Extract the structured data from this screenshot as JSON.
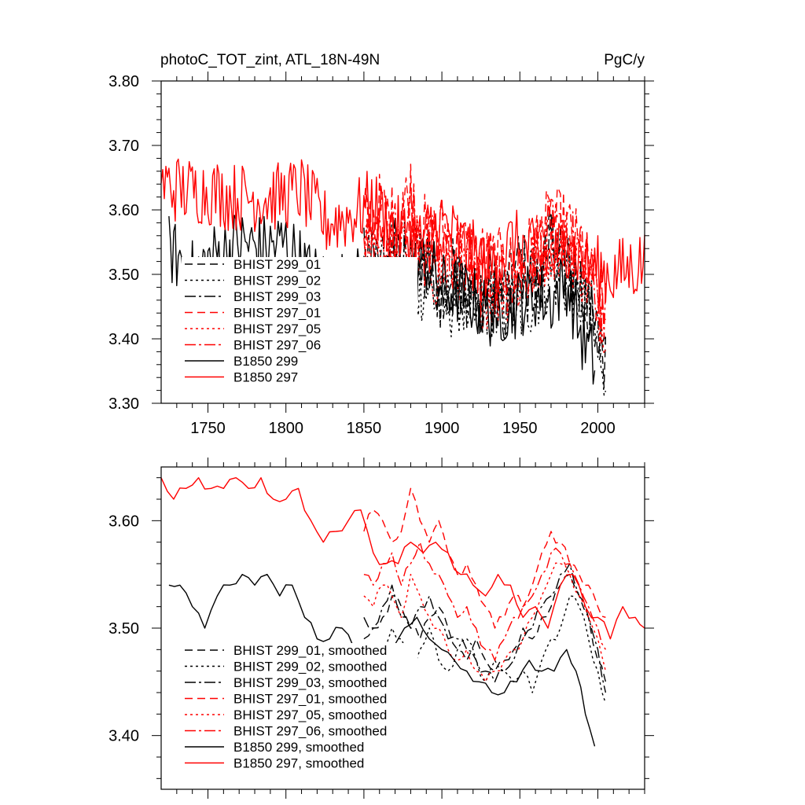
{
  "chart_data": [
    {
      "type": "line",
      "title": "photoC_TOT_zint, ATL_18N-49N",
      "units": "PgC/y",
      "xlim": [
        1720,
        2030
      ],
      "ylim": [
        3.3,
        3.8
      ],
      "xticks": [
        1750,
        1800,
        1850,
        1900,
        1950,
        2000
      ],
      "yticks": [
        "3.30",
        "3.40",
        "3.50",
        "3.60",
        "3.70",
        "3.80"
      ],
      "legend_position": "lower-left",
      "series": [
        {
          "name": "BHIST 299_01",
          "color": "#000000",
          "dash": "10,6",
          "start": 1850,
          "end": 2005,
          "x": [
            1850,
            1860,
            1870,
            1880,
            1890,
            1900,
            1910,
            1920,
            1930,
            1940,
            1950,
            1960,
            1970,
            1980,
            1990,
            2005
          ],
          "y": [
            3.51,
            3.48,
            3.55,
            3.47,
            3.53,
            3.46,
            3.52,
            3.45,
            3.49,
            3.47,
            3.52,
            3.48,
            3.55,
            3.51,
            3.47,
            3.36
          ]
        },
        {
          "name": "BHIST 299_02",
          "color": "#000000",
          "dash": "3,4",
          "start": 1850,
          "end": 2005,
          "x": [
            1850,
            1860,
            1870,
            1880,
            1890,
            1900,
            1910,
            1920,
            1930,
            1940,
            1950,
            1960,
            1970,
            1980,
            1990,
            2005
          ],
          "y": [
            3.52,
            3.45,
            3.5,
            3.47,
            3.49,
            3.44,
            3.47,
            3.43,
            3.46,
            3.45,
            3.44,
            3.47,
            3.5,
            3.49,
            3.46,
            3.36
          ]
        },
        {
          "name": "BHIST 299_03",
          "color": "#000000",
          "dash": "14,4,3,4",
          "start": 1850,
          "end": 2005,
          "x": [
            1850,
            1860,
            1870,
            1880,
            1890,
            1900,
            1910,
            1920,
            1930,
            1940,
            1950,
            1960,
            1970,
            1980,
            1990,
            2005
          ],
          "y": [
            3.53,
            3.49,
            3.54,
            3.51,
            3.52,
            3.48,
            3.5,
            3.46,
            3.47,
            3.45,
            3.47,
            3.5,
            3.54,
            3.51,
            3.48,
            3.37
          ]
        },
        {
          "name": "BHIST 297_01",
          "color": "#ff0000",
          "dash": "10,6",
          "start": 1850,
          "end": 2005,
          "x": [
            1850,
            1860,
            1870,
            1880,
            1890,
            1900,
            1910,
            1920,
            1930,
            1940,
            1950,
            1960,
            1970,
            1980,
            1990,
            2005
          ],
          "y": [
            3.58,
            3.6,
            3.58,
            3.63,
            3.56,
            3.57,
            3.55,
            3.53,
            3.52,
            3.51,
            3.51,
            3.55,
            3.58,
            3.57,
            3.53,
            3.43
          ]
        },
        {
          "name": "BHIST 297_05",
          "color": "#ff0000",
          "dash": "3,4",
          "start": 1850,
          "end": 2005,
          "x": [
            1850,
            1860,
            1870,
            1880,
            1890,
            1900,
            1910,
            1920,
            1930,
            1940,
            1950,
            1960,
            1970,
            1980,
            1990,
            2005
          ],
          "y": [
            3.54,
            3.53,
            3.52,
            3.56,
            3.51,
            3.5,
            3.52,
            3.48,
            3.47,
            3.48,
            3.49,
            3.52,
            3.55,
            3.55,
            3.51,
            3.43
          ]
        },
        {
          "name": "BHIST 297_06",
          "color": "#ff0000",
          "dash": "14,4,3,4",
          "start": 1850,
          "end": 2005,
          "x": [
            1850,
            1860,
            1870,
            1880,
            1890,
            1900,
            1910,
            1920,
            1930,
            1940,
            1950,
            1960,
            1970,
            1980,
            1990,
            2005
          ],
          "y": [
            3.56,
            3.55,
            3.56,
            3.6,
            3.53,
            3.54,
            3.53,
            3.5,
            3.49,
            3.5,
            3.5,
            3.53,
            3.56,
            3.56,
            3.52,
            3.43
          ]
        },
        {
          "name": "B1850 299",
          "color": "#000000",
          "dash": "",
          "start": 1725,
          "end": 1998,
          "x": [
            1725,
            1740,
            1755,
            1770,
            1785,
            1800,
            1815,
            1830,
            1845,
            1860,
            1875,
            1890,
            1900,
            1915,
            1930,
            1945,
            1960,
            1970,
            1980,
            1990,
            1998
          ],
          "y": [
            3.54,
            3.5,
            3.53,
            3.55,
            3.54,
            3.55,
            3.5,
            3.48,
            3.49,
            3.47,
            3.49,
            3.52,
            3.48,
            3.47,
            3.44,
            3.45,
            3.47,
            3.46,
            3.49,
            3.4,
            3.36
          ]
        },
        {
          "name": "B1850 297",
          "color": "#ff0000",
          "dash": "",
          "start": 1720,
          "end": 2030,
          "x": [
            1720,
            1735,
            1750,
            1765,
            1780,
            1795,
            1810,
            1825,
            1840,
            1855,
            1870,
            1885,
            1900,
            1915,
            1930,
            1945,
            1960,
            1970,
            1980,
            1995,
            2010,
            2030
          ],
          "y": [
            3.64,
            3.63,
            3.63,
            3.62,
            3.62,
            3.62,
            3.63,
            3.58,
            3.59,
            3.61,
            3.57,
            3.55,
            3.58,
            3.54,
            3.51,
            3.55,
            3.53,
            3.52,
            3.55,
            3.51,
            3.5,
            3.52
          ]
        }
      ]
    },
    {
      "type": "line",
      "xlim": [
        1720,
        2030
      ],
      "ylim": [
        3.35,
        3.65
      ],
      "yticks": [
        "3.40",
        "3.50",
        "3.60"
      ],
      "legend_position": "lower-left",
      "series": [
        {
          "name": "BHIST 299_01, smoothed",
          "color": "#000000",
          "dash": "10,6",
          "x": [
            1850,
            1856,
            1862,
            1868,
            1874,
            1880,
            1886,
            1892,
            1898,
            1904,
            1910,
            1916,
            1922,
            1928,
            1934,
            1940,
            1946,
            1952,
            1958,
            1964,
            1970,
            1976,
            1982,
            1988,
            1994,
            2000,
            2005
          ],
          "y": [
            3.49,
            3.5,
            3.51,
            3.53,
            3.52,
            3.5,
            3.49,
            3.51,
            3.52,
            3.5,
            3.48,
            3.47,
            3.49,
            3.47,
            3.46,
            3.47,
            3.48,
            3.5,
            3.49,
            3.51,
            3.52,
            3.54,
            3.55,
            3.53,
            3.51,
            3.47,
            3.45
          ]
        },
        {
          "name": "BHIST 299_02, smoothed",
          "color": "#000000",
          "dash": "3,4",
          "x": [
            1850,
            1856,
            1862,
            1868,
            1874,
            1880,
            1886,
            1892,
            1898,
            1904,
            1910,
            1916,
            1922,
            1928,
            1934,
            1940,
            1946,
            1952,
            1958,
            1964,
            1970,
            1976,
            1982,
            1988,
            1994,
            2000,
            2005
          ],
          "y": [
            3.47,
            3.48,
            3.47,
            3.5,
            3.49,
            3.46,
            3.48,
            3.5,
            3.47,
            3.46,
            3.48,
            3.49,
            3.47,
            3.45,
            3.47,
            3.46,
            3.45,
            3.46,
            3.44,
            3.47,
            3.49,
            3.5,
            3.53,
            3.52,
            3.49,
            3.46,
            3.43
          ]
        },
        {
          "name": "BHIST 299_03, smoothed",
          "color": "#000000",
          "dash": "14,4,3,4",
          "x": [
            1850,
            1856,
            1862,
            1868,
            1874,
            1880,
            1886,
            1892,
            1898,
            1904,
            1910,
            1916,
            1922,
            1928,
            1934,
            1940,
            1946,
            1952,
            1958,
            1964,
            1970,
            1976,
            1982,
            1988,
            1994,
            2000,
            2005
          ],
          "y": [
            3.51,
            3.5,
            3.52,
            3.54,
            3.51,
            3.5,
            3.52,
            3.53,
            3.51,
            3.49,
            3.49,
            3.48,
            3.47,
            3.46,
            3.45,
            3.46,
            3.47,
            3.49,
            3.5,
            3.52,
            3.53,
            3.55,
            3.56,
            3.53,
            3.51,
            3.48,
            3.44
          ]
        },
        {
          "name": "BHIST 297_01, smoothed",
          "color": "#ff0000",
          "dash": "10,6",
          "x": [
            1850,
            1856,
            1862,
            1868,
            1874,
            1880,
            1886,
            1892,
            1898,
            1904,
            1910,
            1916,
            1922,
            1928,
            1934,
            1940,
            1946,
            1952,
            1958,
            1964,
            1970,
            1976,
            1982,
            1988,
            1994,
            2000,
            2005
          ],
          "y": [
            3.59,
            3.61,
            3.6,
            3.58,
            3.59,
            3.63,
            3.6,
            3.58,
            3.6,
            3.57,
            3.55,
            3.56,
            3.54,
            3.52,
            3.5,
            3.51,
            3.53,
            3.52,
            3.54,
            3.57,
            3.59,
            3.58,
            3.56,
            3.55,
            3.54,
            3.52,
            3.51
          ]
        },
        {
          "name": "BHIST 297_05, smoothed",
          "color": "#ff0000",
          "dash": "3,4",
          "x": [
            1850,
            1856,
            1862,
            1868,
            1874,
            1880,
            1886,
            1892,
            1898,
            1904,
            1910,
            1916,
            1922,
            1928,
            1934,
            1940,
            1946,
            1952,
            1958,
            1964,
            1970,
            1976,
            1982,
            1988,
            1994,
            2000,
            2005
          ],
          "y": [
            3.53,
            3.52,
            3.54,
            3.53,
            3.51,
            3.55,
            3.53,
            3.51,
            3.5,
            3.48,
            3.47,
            3.48,
            3.46,
            3.45,
            3.46,
            3.47,
            3.48,
            3.49,
            3.51,
            3.53,
            3.55,
            3.56,
            3.55,
            3.53,
            3.51,
            3.49,
            3.46
          ]
        },
        {
          "name": "BHIST 297_06, smoothed",
          "color": "#ff0000",
          "dash": "14,4,3,4",
          "x": [
            1850,
            1856,
            1862,
            1868,
            1874,
            1880,
            1886,
            1892,
            1898,
            1904,
            1910,
            1916,
            1922,
            1928,
            1934,
            1940,
            1946,
            1952,
            1958,
            1964,
            1970,
            1976,
            1982,
            1988,
            1994,
            2000,
            2005
          ],
          "y": [
            3.55,
            3.54,
            3.56,
            3.57,
            3.54,
            3.56,
            3.58,
            3.56,
            3.55,
            3.53,
            3.51,
            3.52,
            3.5,
            3.48,
            3.47,
            3.49,
            3.51,
            3.52,
            3.53,
            3.55,
            3.57,
            3.57,
            3.56,
            3.54,
            3.52,
            3.5,
            3.48
          ]
        },
        {
          "name": "B1850 299, smoothed",
          "color": "#000000",
          "dash": "",
          "x": [
            1725,
            1732,
            1740,
            1748,
            1756,
            1764,
            1772,
            1780,
            1788,
            1796,
            1804,
            1812,
            1820,
            1828,
            1836,
            1844,
            1852,
            1860,
            1868,
            1876,
            1884,
            1892,
            1900,
            1908,
            1916,
            1924,
            1932,
            1940,
            1948,
            1956,
            1964,
            1972,
            1980,
            1986,
            1992,
            1998
          ],
          "y": [
            3.54,
            3.54,
            3.52,
            3.5,
            3.53,
            3.54,
            3.55,
            3.54,
            3.55,
            3.53,
            3.54,
            3.51,
            3.49,
            3.49,
            3.5,
            3.48,
            3.47,
            3.46,
            3.48,
            3.5,
            3.51,
            3.49,
            3.48,
            3.47,
            3.46,
            3.45,
            3.44,
            3.44,
            3.45,
            3.47,
            3.46,
            3.46,
            3.48,
            3.46,
            3.42,
            3.39
          ]
        },
        {
          "name": "B1850 297, smoothed",
          "color": "#ff0000",
          "dash": "",
          "x": [
            1720,
            1728,
            1736,
            1744,
            1752,
            1760,
            1768,
            1776,
            1784,
            1792,
            1800,
            1808,
            1816,
            1824,
            1832,
            1840,
            1848,
            1856,
            1864,
            1872,
            1880,
            1888,
            1896,
            1904,
            1912,
            1920,
            1928,
            1936,
            1944,
            1952,
            1960,
            1968,
            1976,
            1984,
            1992,
            2000,
            2008,
            2016,
            2024,
            2030
          ],
          "y": [
            3.64,
            3.62,
            3.63,
            3.64,
            3.63,
            3.63,
            3.64,
            3.63,
            3.64,
            3.62,
            3.62,
            3.63,
            3.6,
            3.58,
            3.59,
            3.6,
            3.61,
            3.57,
            3.56,
            3.56,
            3.58,
            3.57,
            3.58,
            3.57,
            3.55,
            3.54,
            3.53,
            3.55,
            3.54,
            3.51,
            3.52,
            3.5,
            3.54,
            3.55,
            3.52,
            3.51,
            3.49,
            3.52,
            3.51,
            3.5
          ]
        }
      ]
    }
  ]
}
